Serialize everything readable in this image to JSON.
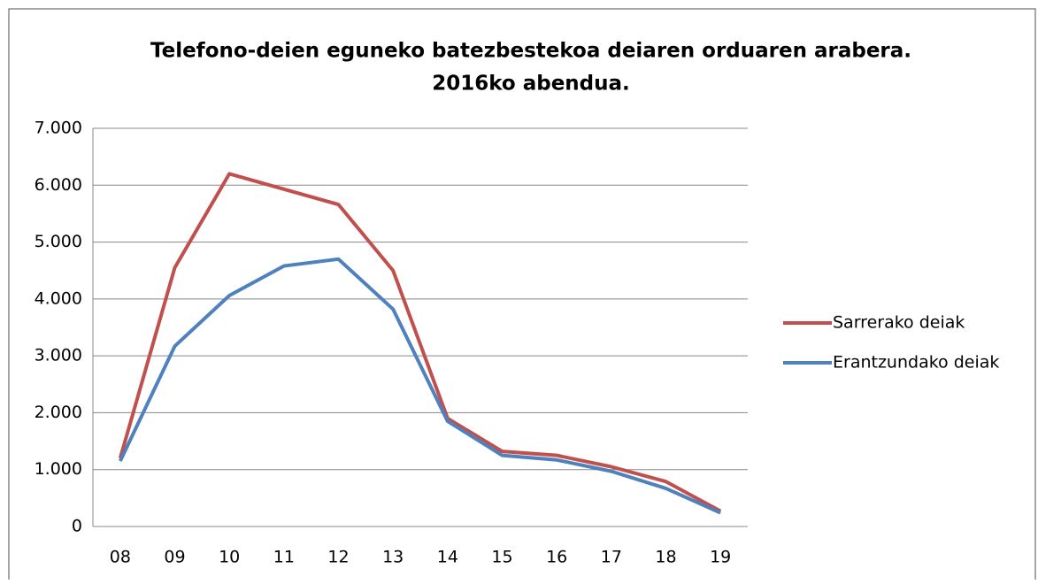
{
  "chart_data": {
    "type": "line",
    "title": [
      "Telefono-deien eguneko batezbestekoa deiaren orduaren arabera.",
      "2016ko abendua."
    ],
    "categories": [
      "08",
      "09",
      "10",
      "11",
      "12",
      "13",
      "14",
      "15",
      "16",
      "17",
      "18",
      "19"
    ],
    "series": [
      {
        "name": "Sarrerako deiak",
        "color": "#c0504d",
        "values": [
          1200,
          4550,
          6200,
          5930,
          5660,
          4500,
          1900,
          1320,
          1250,
          1050,
          790,
          270
        ]
      },
      {
        "name": "Erantzundako deiak",
        "color": "#4f81bd",
        "values": [
          1150,
          3170,
          4060,
          4580,
          4700,
          3820,
          1850,
          1250,
          1170,
          970,
          670,
          240
        ]
      }
    ],
    "ylim": [
      0,
      7000
    ],
    "yticks": [
      0,
      {
        "value": 1000,
        "label": "1.000"
      },
      {
        "value": 2000,
        "label": "2.000"
      },
      {
        "value": 3000,
        "label": "3.000"
      },
      {
        "value": 4000,
        "label": "4.000"
      },
      {
        "value": 5000,
        "label": "5.000"
      },
      {
        "value": 6000,
        "label": "6.000"
      },
      {
        "value": 7000,
        "label": "7.000"
      }
    ],
    "grid": true,
    "legend": "right"
  }
}
